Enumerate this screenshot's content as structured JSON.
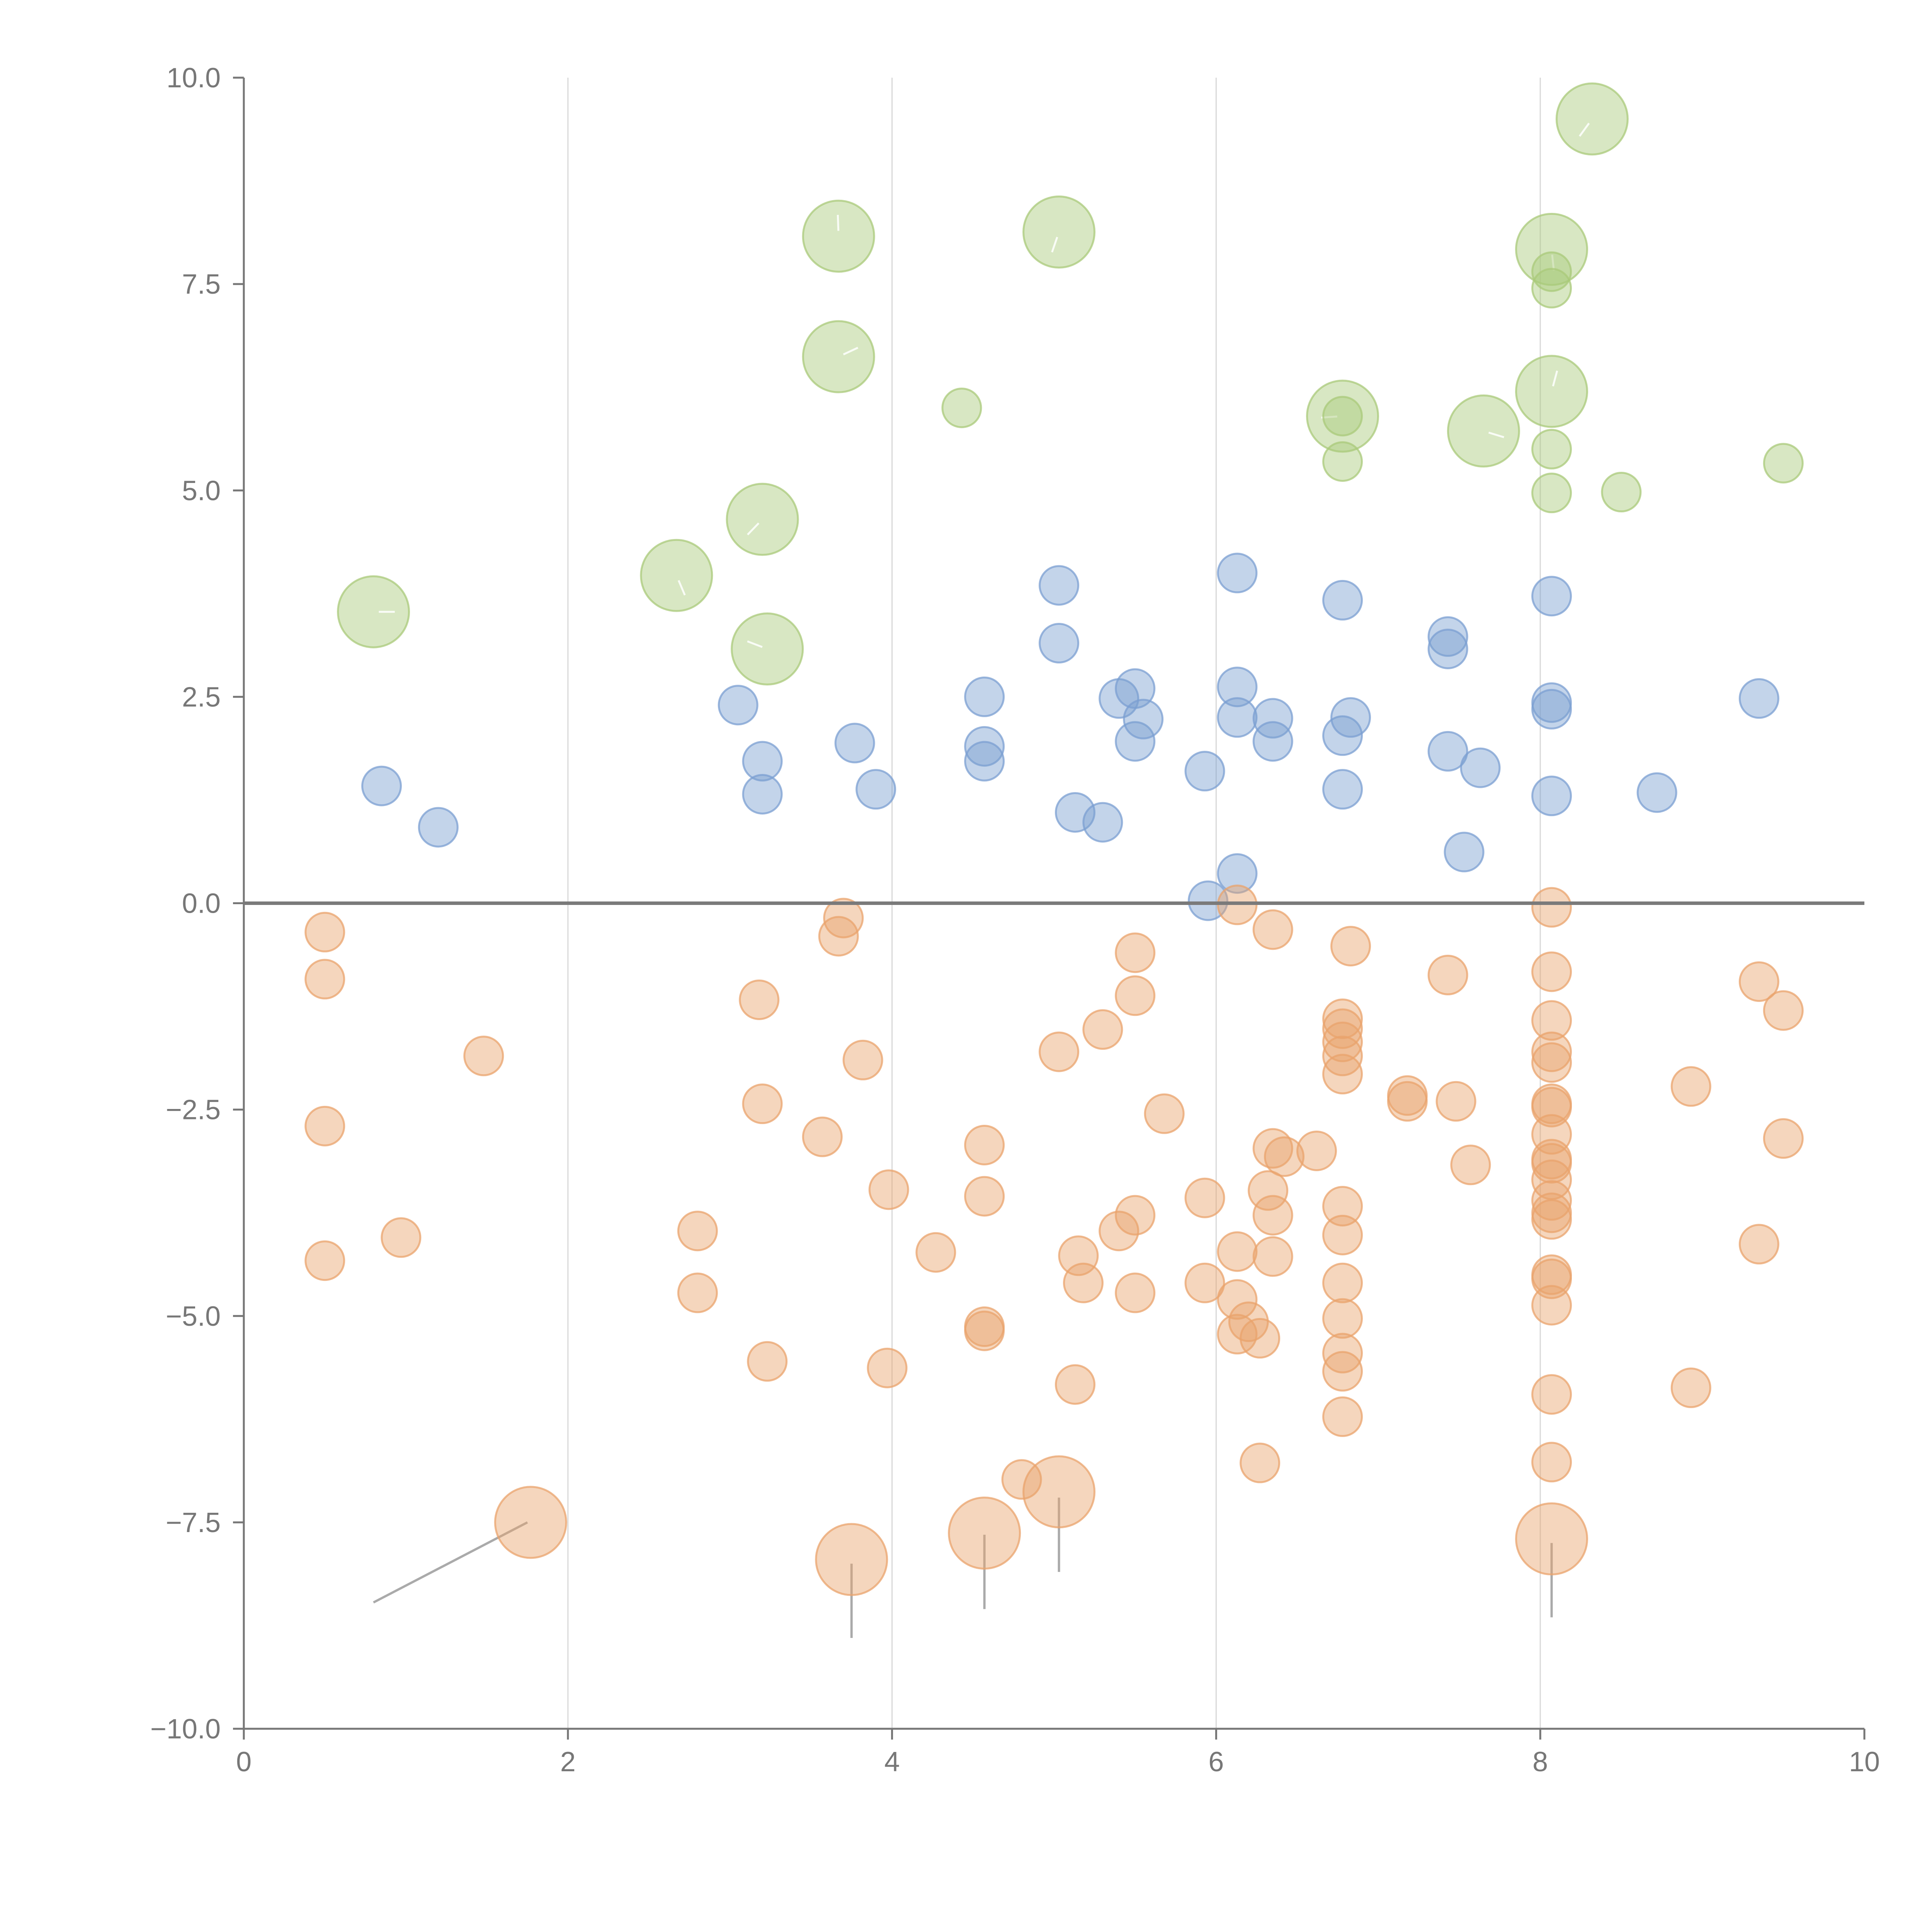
{
  "chart_data": {
    "type": "scatter",
    "title": "",
    "xlabel": "",
    "ylabel": "",
    "xlim": [
      0,
      10
    ],
    "ylim": [
      -10,
      10
    ],
    "xticks": [
      0,
      2,
      4,
      6,
      8,
      10
    ],
    "xtick_labels": [
      "0",
      "2",
      "4",
      "6",
      "8",
      "10"
    ],
    "yticks": [
      -10,
      -7.5,
      -5,
      -2.5,
      0,
      2.5,
      5,
      7.5,
      10
    ],
    "ytick_labels": [
      "−10.0",
      "−7.5",
      "−5.0",
      "−2.5",
      "0.0",
      "2.5",
      "5.0",
      "7.5",
      "10.0"
    ],
    "vertical_gridlines_at": [
      2,
      4,
      6,
      8
    ],
    "zero_line": true,
    "series": [
      {
        "name": "green",
        "color": "#a9c97a",
        "points": [
          [
            0.8,
            3.53,
            2
          ],
          [
            2.67,
            3.97,
            2
          ],
          [
            3.2,
            4.65,
            2
          ],
          [
            3.23,
            3.08,
            2
          ],
          [
            3.67,
            8.08,
            2
          ],
          [
            3.67,
            6.62,
            2
          ],
          [
            4.43,
            6.0,
            1
          ],
          [
            5.03,
            8.13,
            2
          ],
          [
            6.78,
            5.9,
            2
          ],
          [
            6.78,
            5.9,
            1
          ],
          [
            6.78,
            5.35,
            1
          ],
          [
            7.65,
            5.72,
            2
          ],
          [
            8.07,
            7.92,
            2
          ],
          [
            8.07,
            7.65,
            1
          ],
          [
            8.07,
            7.45,
            1
          ],
          [
            8.07,
            6.2,
            2
          ],
          [
            8.07,
            5.5,
            1
          ],
          [
            8.07,
            4.97,
            1
          ],
          [
            8.32,
            9.5,
            2
          ],
          [
            8.5,
            4.98,
            1
          ],
          [
            9.5,
            5.33,
            1
          ]
        ]
      },
      {
        "name": "blue",
        "color": "#7b9fd1",
        "points": [
          [
            0.85,
            1.42,
            1
          ],
          [
            1.2,
            0.92,
            1
          ],
          [
            3.05,
            2.4,
            1
          ],
          [
            3.2,
            1.72,
            1
          ],
          [
            3.2,
            1.32,
            1
          ],
          [
            3.77,
            1.94,
            1
          ],
          [
            3.9,
            1.38,
            1
          ],
          [
            4.57,
            2.5,
            1
          ],
          [
            4.57,
            1.9,
            1
          ],
          [
            4.57,
            1.72,
            1
          ],
          [
            5.03,
            3.85,
            1
          ],
          [
            5.03,
            3.15,
            1
          ],
          [
            5.13,
            1.1,
            1
          ],
          [
            5.3,
            0.98,
            1
          ],
          [
            5.4,
            2.48,
            1
          ],
          [
            5.5,
            2.6,
            1
          ],
          [
            5.5,
            1.96,
            1
          ],
          [
            5.55,
            2.23,
            1
          ],
          [
            5.93,
            1.6,
            1
          ],
          [
            5.95,
            0.03,
            1
          ],
          [
            6.13,
            4.0,
            1
          ],
          [
            6.13,
            2.62,
            1
          ],
          [
            6.13,
            2.25,
            1
          ],
          [
            6.13,
            0.36,
            1
          ],
          [
            6.35,
            2.24,
            1
          ],
          [
            6.35,
            1.96,
            1
          ],
          [
            6.78,
            3.67,
            1
          ],
          [
            6.78,
            2.03,
            1
          ],
          [
            6.78,
            1.38,
            1
          ],
          [
            6.83,
            2.25,
            1
          ],
          [
            7.43,
            3.23,
            1
          ],
          [
            7.43,
            3.08,
            1
          ],
          [
            7.43,
            1.84,
            1
          ],
          [
            7.53,
            0.62,
            1
          ],
          [
            7.63,
            1.64,
            1
          ],
          [
            8.07,
            3.72,
            1
          ],
          [
            8.07,
            2.43,
            1
          ],
          [
            8.07,
            2.35,
            1
          ],
          [
            8.07,
            1.3,
            1
          ],
          [
            8.72,
            1.34,
            1
          ],
          [
            9.35,
            2.48,
            1
          ]
        ]
      },
      {
        "name": "orange",
        "color": "#e9a36c",
        "points": [
          [
            0.5,
            -0.35,
            1
          ],
          [
            0.5,
            -0.92,
            1
          ],
          [
            0.5,
            -2.7,
            1
          ],
          [
            0.5,
            -4.33,
            1
          ],
          [
            0.97,
            -4.05,
            1
          ],
          [
            1.48,
            -1.85,
            1
          ],
          [
            1.77,
            -7.5,
            2
          ],
          [
            2.8,
            -3.97,
            1
          ],
          [
            2.8,
            -4.72,
            1
          ],
          [
            3.18,
            -1.17,
            1
          ],
          [
            3.2,
            -2.43,
            1
          ],
          [
            3.23,
            -5.55,
            1
          ],
          [
            3.57,
            -2.83,
            1
          ],
          [
            3.67,
            -0.4,
            1
          ],
          [
            3.7,
            -0.18,
            1
          ],
          [
            3.75,
            -7.95,
            2
          ],
          [
            3.82,
            -1.9,
            1
          ],
          [
            3.97,
            -5.63,
            1
          ],
          [
            3.98,
            -3.47,
            1
          ],
          [
            4.27,
            -4.23,
            1
          ],
          [
            4.57,
            -2.93,
            1
          ],
          [
            4.57,
            -3.55,
            1
          ],
          [
            4.57,
            -5.13,
            1
          ],
          [
            4.57,
            -5.18,
            1
          ],
          [
            4.57,
            -7.63,
            2
          ],
          [
            4.8,
            -6.98,
            1
          ],
          [
            5.03,
            -1.8,
            1
          ],
          [
            5.03,
            -7.13,
            2
          ],
          [
            5.13,
            -5.83,
            1
          ],
          [
            5.15,
            -4.27,
            1
          ],
          [
            5.18,
            -4.6,
            1
          ],
          [
            5.3,
            -1.53,
            1
          ],
          [
            5.4,
            -3.97,
            1
          ],
          [
            5.5,
            -0.6,
            1
          ],
          [
            5.5,
            -1.12,
            1
          ],
          [
            5.5,
            -3.78,
            1
          ],
          [
            5.5,
            -4.72,
            1
          ],
          [
            5.68,
            -2.55,
            1
          ],
          [
            5.93,
            -3.57,
            1
          ],
          [
            5.93,
            -4.6,
            1
          ],
          [
            6.13,
            -0.02,
            1
          ],
          [
            6.13,
            -4.22,
            1
          ],
          [
            6.13,
            -4.8,
            1
          ],
          [
            6.13,
            -5.22,
            1
          ],
          [
            6.2,
            -5.07,
            1
          ],
          [
            6.27,
            -5.27,
            1
          ],
          [
            6.27,
            -6.78,
            1
          ],
          [
            6.32,
            -3.48,
            1
          ],
          [
            6.35,
            -0.32,
            1
          ],
          [
            6.35,
            -2.97,
            1
          ],
          [
            6.35,
            -3.78,
            1
          ],
          [
            6.35,
            -4.28,
            1
          ],
          [
            6.42,
            -3.07,
            1
          ],
          [
            6.62,
            -3.0,
            1
          ],
          [
            6.78,
            -1.4,
            1
          ],
          [
            6.78,
            -1.52,
            1
          ],
          [
            6.78,
            -1.68,
            1
          ],
          [
            6.78,
            -1.85,
            1
          ],
          [
            6.78,
            -2.07,
            1
          ],
          [
            6.78,
            -3.67,
            1
          ],
          [
            6.78,
            -4.02,
            1
          ],
          [
            6.78,
            -4.6,
            1
          ],
          [
            6.78,
            -5.03,
            1
          ],
          [
            6.78,
            -5.45,
            1
          ],
          [
            6.78,
            -5.67,
            1
          ],
          [
            6.78,
            -6.22,
            1
          ],
          [
            6.83,
            -0.52,
            1
          ],
          [
            7.18,
            -2.33,
            1
          ],
          [
            7.18,
            -2.4,
            1
          ],
          [
            7.43,
            -0.87,
            1
          ],
          [
            7.48,
            -2.4,
            1
          ],
          [
            7.57,
            -3.17,
            1
          ],
          [
            8.07,
            -0.05,
            1
          ],
          [
            8.07,
            -0.83,
            1
          ],
          [
            8.07,
            -1.42,
            1
          ],
          [
            8.07,
            -1.8,
            1
          ],
          [
            8.07,
            -1.93,
            1
          ],
          [
            8.07,
            -2.43,
            1
          ],
          [
            8.07,
            -2.47,
            1
          ],
          [
            8.07,
            -2.8,
            1
          ],
          [
            8.07,
            -3.1,
            1
          ],
          [
            8.07,
            -3.15,
            1
          ],
          [
            8.07,
            -3.35,
            1
          ],
          [
            8.07,
            -3.6,
            1
          ],
          [
            8.07,
            -3.75,
            1
          ],
          [
            8.07,
            -3.83,
            1
          ],
          [
            8.07,
            -4.5,
            1
          ],
          [
            8.07,
            -4.55,
            1
          ],
          [
            8.07,
            -4.87,
            1
          ],
          [
            8.07,
            -5.95,
            1
          ],
          [
            8.07,
            -6.77,
            1
          ],
          [
            8.07,
            -7.7,
            2
          ],
          [
            8.93,
            -2.22,
            1
          ],
          [
            8.93,
            -5.87,
            1
          ],
          [
            9.35,
            -0.95,
            1
          ],
          [
            9.35,
            -4.13,
            1
          ],
          [
            9.5,
            -1.3,
            1
          ],
          [
            9.5,
            -2.85,
            1
          ]
        ]
      }
    ],
    "size_note": "Third value in each point is a size class: 1 = small bubble, 2 = large bubble.",
    "leader_lines": [
      {
        "from": [
          1.75,
          -7.5
        ],
        "to": [
          0.8,
          -8.47
        ]
      },
      {
        "from": [
          3.75,
          -8.0
        ],
        "to": [
          3.75,
          -8.9
        ]
      },
      {
        "from": [
          4.57,
          -7.65
        ],
        "to": [
          4.57,
          -8.55
        ]
      },
      {
        "from": [
          5.03,
          -7.2
        ],
        "to": [
          5.03,
          -8.1
        ]
      },
      {
        "from": [
          8.07,
          -7.75
        ],
        "to": [
          8.07,
          -8.65
        ]
      }
    ]
  }
}
